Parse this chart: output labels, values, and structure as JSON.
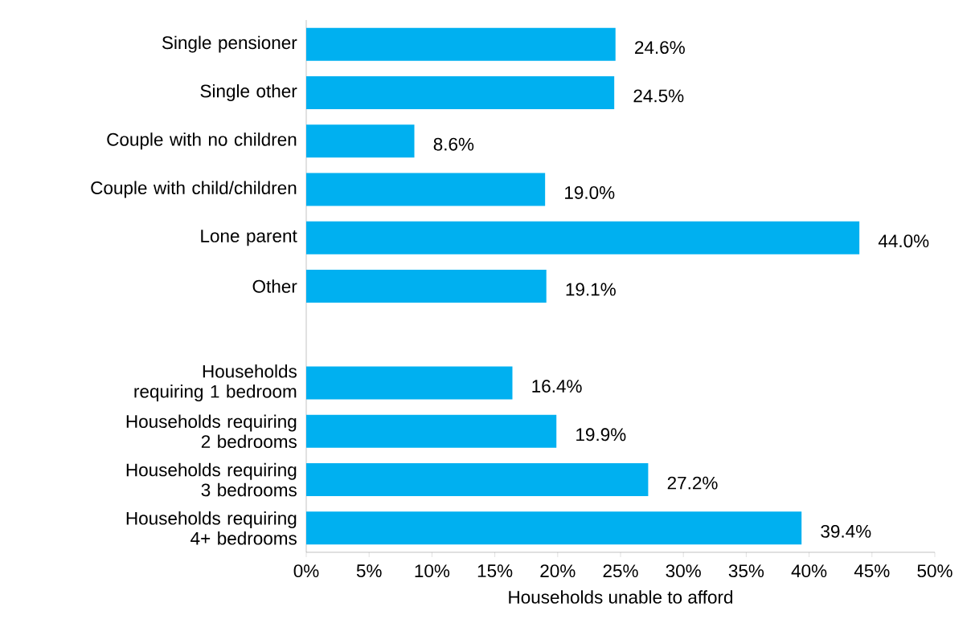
{
  "chart_data": {
    "type": "bar",
    "orientation": "horizontal",
    "xlabel": "Households unable to afford",
    "categories": [
      "Single pensioner",
      "Single other",
      "Couple with no children",
      "Couple with child/children",
      "Lone parent",
      "Other",
      null,
      "Households requiring 1 bedroom",
      "Households requiring 2 bedrooms",
      "Households requiring 3 bedrooms",
      "Households requiring 4+ bedrooms"
    ],
    "values": [
      24.6,
      24.5,
      8.6,
      19.0,
      44.0,
      19.1,
      null,
      16.4,
      19.9,
      27.2,
      39.4
    ],
    "value_labels": [
      "24.6%",
      "24.5%",
      "8.6%",
      "19.0%",
      "44.0%",
      "19.1%",
      null,
      "16.4%",
      "19.9%",
      "27.2%",
      "39.4%"
    ],
    "color": "#00b0f0",
    "xlim": [
      0,
      50
    ],
    "xticks": [
      {
        "value": 0,
        "label": "0%"
      },
      {
        "value": 5,
        "label": "5%"
      },
      {
        "value": 10,
        "label": "10%"
      },
      {
        "value": 15,
        "label": "15%"
      },
      {
        "value": 20,
        "label": "20%"
      },
      {
        "value": 25,
        "label": "25%"
      },
      {
        "value": 30,
        "label": "30%"
      },
      {
        "value": 35,
        "label": "35%"
      },
      {
        "value": 40,
        "label": "40%"
      },
      {
        "value": 45,
        "label": "45%"
      },
      {
        "value": 50,
        "label": "50%"
      }
    ],
    "grid": false
  }
}
